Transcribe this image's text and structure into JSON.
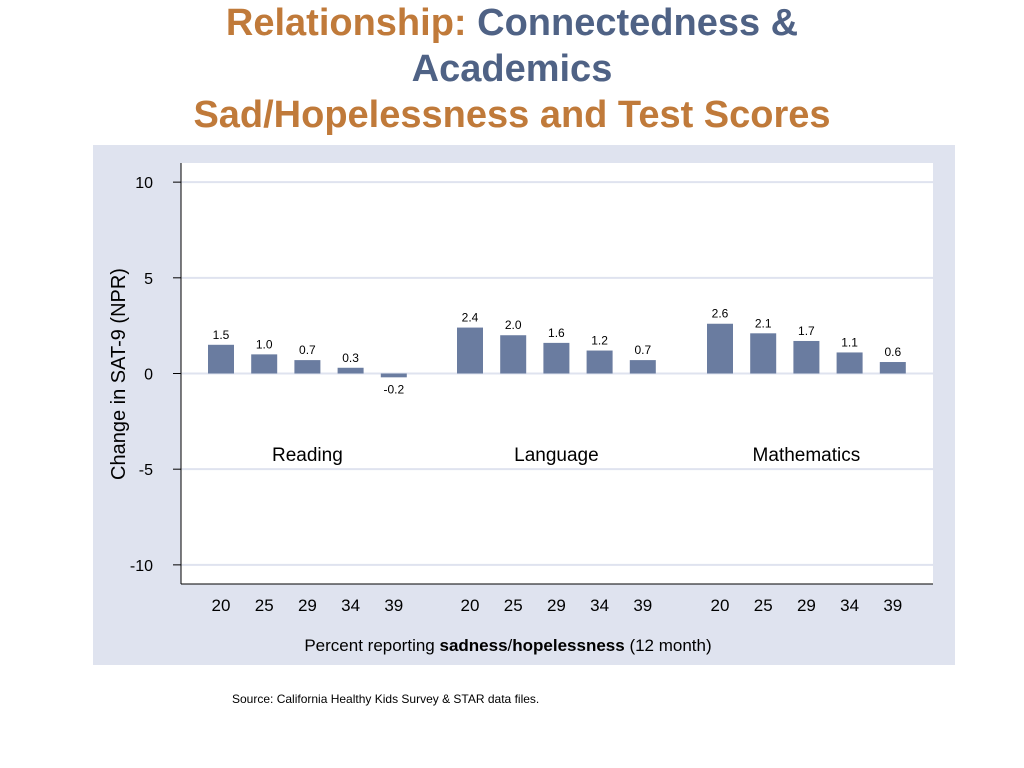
{
  "title": {
    "line1_a": "Relationship:",
    "line1_b": "Connectedness &",
    "line2": "Academics",
    "line3": "Sad/Hopelessness and Test Scores"
  },
  "source": "Source:  California Healthy Kids Survey & STAR data files.",
  "colors": {
    "bar": "#6a7ca0",
    "panel": "#dfe3ef",
    "grid": "#dfe3ef",
    "plot_bg": "#ffffff"
  },
  "chart_data": {
    "type": "bar",
    "ylabel": "Change in SAT-9 (NPR)",
    "xlabel_parts": [
      {
        "text": "Percent reporting ",
        "bold": false
      },
      {
        "text": "sadness",
        "bold": true
      },
      {
        "text": "/",
        "bold": false
      },
      {
        "text": "hopelessness",
        "bold": true
      },
      {
        "text": " (12 month)",
        "bold": false
      }
    ],
    "ylim": [
      -11,
      11
    ],
    "yticks": [
      10,
      5,
      0,
      -5,
      -10
    ],
    "grid": true,
    "categories": [
      "20",
      "25",
      "29",
      "34",
      "39"
    ],
    "groups": [
      {
        "name": "Reading",
        "values": [
          1.5,
          1.0,
          0.7,
          0.3,
          -0.2
        ],
        "labels": [
          "1.5",
          "1.0",
          "0.7",
          "0.3",
          "-0.2"
        ]
      },
      {
        "name": "Language",
        "values": [
          2.4,
          2.0,
          1.6,
          1.2,
          0.7
        ],
        "labels": [
          "2.4",
          "2.0",
          "1.6",
          "1.2",
          "0.7"
        ]
      },
      {
        "name": "Mathematics",
        "values": [
          2.6,
          2.1,
          1.7,
          1.1,
          0.6
        ],
        "labels": [
          "2.6",
          "2.1",
          "1.7",
          "1.1",
          "0.6"
        ]
      }
    ]
  }
}
